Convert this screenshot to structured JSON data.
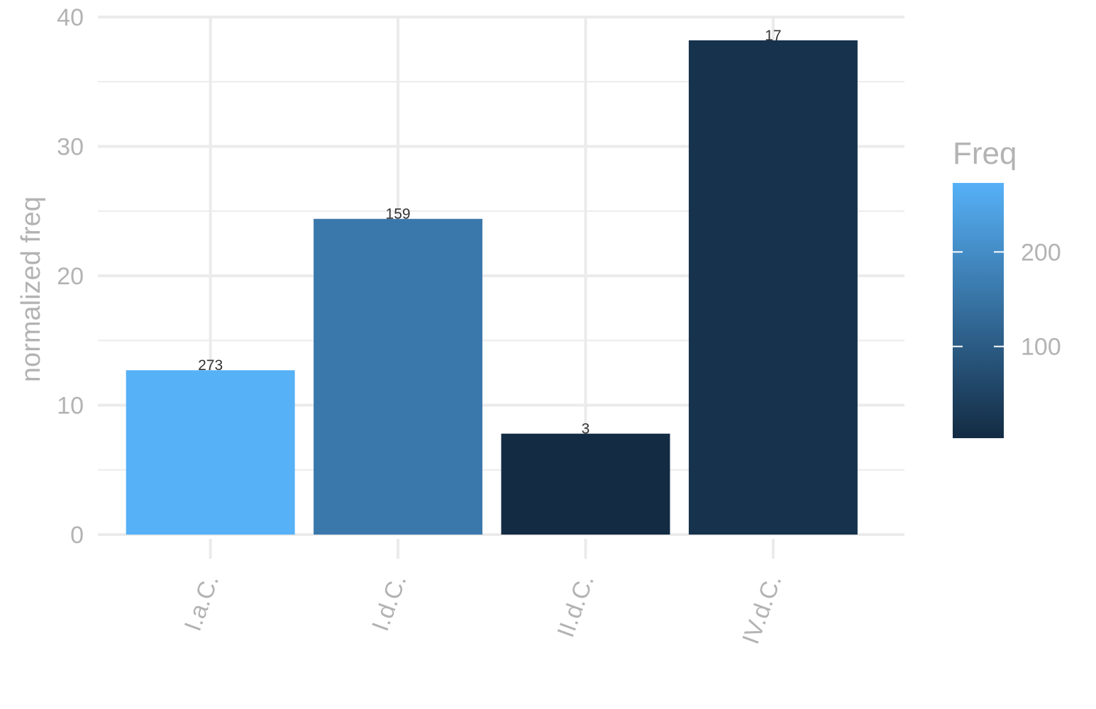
{
  "chart_data": {
    "type": "bar",
    "categories": [
      "I.a.C.",
      "I.d.C.",
      "II.d.C.",
      "IV.d.C."
    ],
    "values": [
      12.7,
      24.4,
      7.8,
      38.2
    ],
    "bar_labels": [
      "273",
      "159",
      "3",
      "17"
    ],
    "fill_freq": [
      273,
      159,
      3,
      17
    ],
    "ylabel": "normalized freq",
    "xlabel": "",
    "ylim": [
      0,
      40
    ],
    "y_ticks": [
      0,
      10,
      20,
      30,
      40
    ],
    "grid": true,
    "legend": {
      "title": "Freq",
      "type": "colorbar",
      "placement": "right",
      "ticks": [
        100,
        200
      ],
      "tick_labels": [
        "100",
        "200"
      ],
      "range": [
        3,
        273
      ],
      "color_low": "#132b43",
      "color_high": "#56b1f7"
    }
  }
}
